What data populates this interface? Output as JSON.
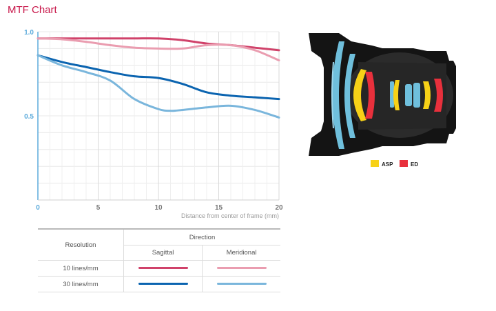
{
  "page": {
    "title": "MTF Chart"
  },
  "colors": {
    "sag10": "#d0426a",
    "mer10": "#ea9db0",
    "sag30": "#0b64b0",
    "mer30": "#7ab6dc",
    "axis": "#5aaadb",
    "accent": "#c8174a",
    "asp": "#f7d117",
    "ed": "#e8303c"
  },
  "chart_data": {
    "type": "line",
    "title": "",
    "xlabel": "Distance from center of frame (mm)",
    "ylabel": "",
    "xlim": [
      0,
      20
    ],
    "ylim": [
      0,
      1.0
    ],
    "x_ticks": [
      {
        "value": 0,
        "label": "0"
      },
      {
        "value": 5,
        "label": "5"
      },
      {
        "value": 10,
        "label": "10"
      },
      {
        "value": 15,
        "label": "15"
      },
      {
        "value": 20,
        "label": "20"
      }
    ],
    "y_ticks": [
      {
        "value": 1.0,
        "label": "1.0"
      },
      {
        "value": 0.5,
        "label": "0.5"
      }
    ],
    "grid": true,
    "series": [
      {
        "key": "sag10",
        "x": [
          0,
          2,
          4,
          6,
          8,
          10,
          12,
          14,
          16,
          18,
          20
        ],
        "y": [
          0.96,
          0.96,
          0.96,
          0.96,
          0.96,
          0.96,
          0.95,
          0.93,
          0.92,
          0.905,
          0.89
        ]
      },
      {
        "key": "mer10",
        "x": [
          0,
          2,
          4,
          6,
          8,
          10,
          12,
          14,
          16,
          18,
          20
        ],
        "y": [
          0.96,
          0.955,
          0.94,
          0.92,
          0.905,
          0.9,
          0.9,
          0.92,
          0.92,
          0.89,
          0.83
        ]
      },
      {
        "key": "sag30",
        "x": [
          0,
          2,
          4,
          6,
          8,
          10,
          12,
          14,
          16,
          18,
          20
        ],
        "y": [
          0.86,
          0.82,
          0.79,
          0.76,
          0.735,
          0.725,
          0.69,
          0.64,
          0.62,
          0.61,
          0.6
        ]
      },
      {
        "key": "mer30",
        "x": [
          0,
          2,
          4,
          6,
          8,
          10,
          11,
          12,
          14,
          16,
          18,
          20
        ],
        "y": [
          0.86,
          0.8,
          0.76,
          0.71,
          0.6,
          0.54,
          0.53,
          0.535,
          0.55,
          0.56,
          0.535,
          0.49
        ]
      }
    ]
  },
  "legend": {
    "direction_label": "Direction",
    "resolution_label": "Resolution",
    "sagittal_label": "Sagittal",
    "meridional_label": "Meridional",
    "rows": [
      {
        "label": "10 lines/mm"
      },
      {
        "label": "30 lines/mm"
      }
    ]
  },
  "lens_legend": {
    "asp_label": "ASP",
    "ed_label": "ED"
  }
}
